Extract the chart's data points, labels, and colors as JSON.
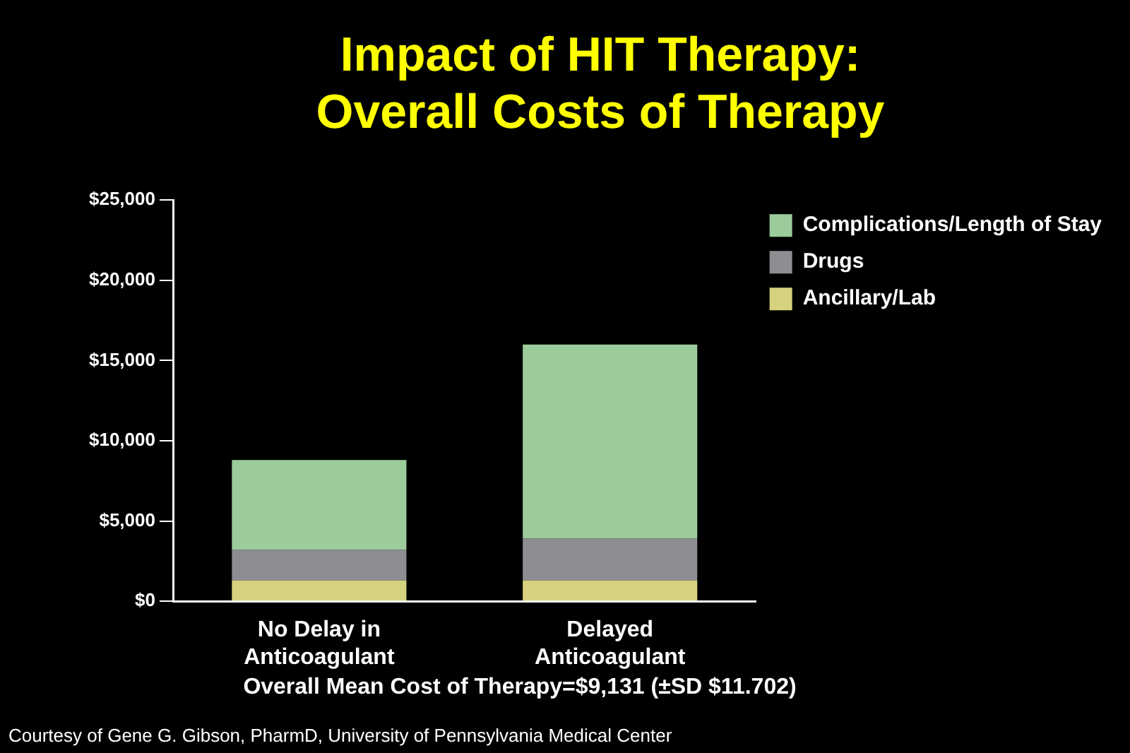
{
  "chart_data": {
    "type": "bar",
    "title": "Impact of HIT Therapy:\nOverall Costs of Therapy",
    "categories": [
      "No Delay in Anticoagulant",
      "Delayed Anticoagulant"
    ],
    "stacked": true,
    "series": [
      {
        "name": "Ancillary/Lab",
        "color": "#d6d27e",
        "values": [
          1300,
          1300
        ]
      },
      {
        "name": "Drugs",
        "color": "#8e8e92",
        "values": [
          1900,
          2600
        ]
      },
      {
        "name": "Complications/Length of Stay",
        "color": "#9ccb9c",
        "values": [
          5600,
          12100
        ]
      }
    ],
    "ylim": [
      0,
      25000
    ],
    "yticks": [
      {
        "value": 0,
        "label": "$0"
      },
      {
        "value": 5000,
        "label": "$5,000"
      },
      {
        "value": 10000,
        "label": "$10,000"
      },
      {
        "value": 15000,
        "label": "$15,000"
      },
      {
        "value": 20000,
        "label": "$20,000"
      },
      {
        "value": 25000,
        "label": "$25,000"
      }
    ],
    "legend": "top right",
    "annotations": [
      "Overall Mean Cost of Therapy=$9,131 (±SD $11.702)",
      "Courtesy of Gene G. Gibson, PharmD, University of Pennsylvania Medical Center"
    ]
  }
}
